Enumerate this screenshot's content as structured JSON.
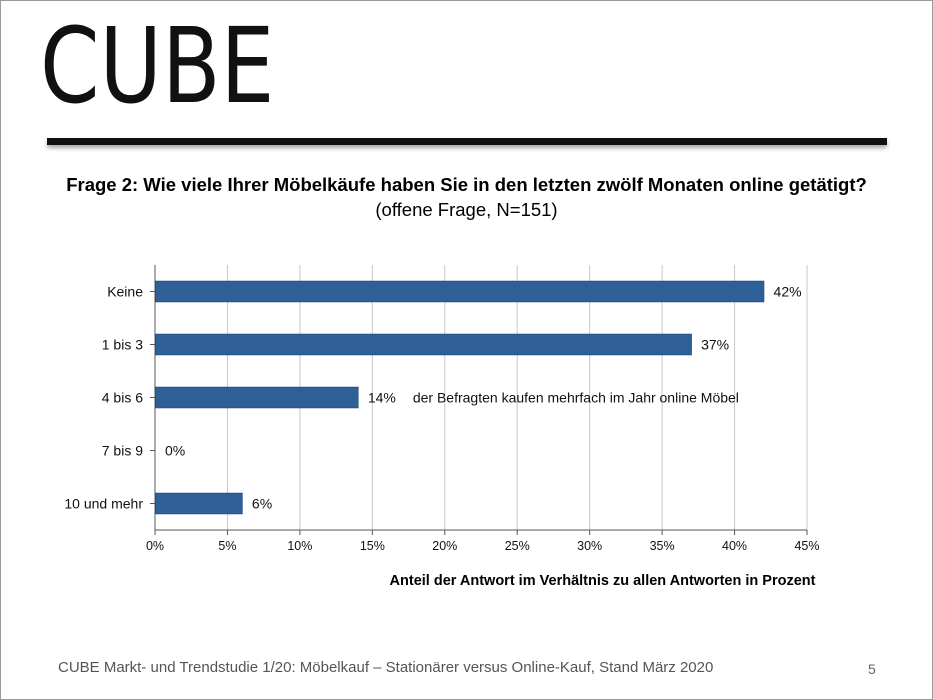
{
  "logo": "CUBE",
  "question": {
    "bold": "Frage 2: Wie viele Ihrer Möbelkäufe haben Sie in den letzten zwölf Monaten online getätigt?",
    "normal": " (offene Frage, N=151)"
  },
  "chart_data": {
    "type": "bar",
    "orientation": "horizontal",
    "categories": [
      "Keine",
      "1 bis 3",
      "4 bis 6",
      "7 bis 9",
      "10 und mehr"
    ],
    "values": [
      42,
      37,
      14,
      0,
      6
    ],
    "value_labels": [
      "42%",
      "37%",
      "14%",
      "0%",
      "6%"
    ],
    "annotation": {
      "category": "4 bis 6",
      "text": "der Befragten kaufen mehrfach im Jahr online Möbel"
    },
    "xticks": [
      "0%",
      "5%",
      "10%",
      "15%",
      "20%",
      "25%",
      "30%",
      "35%",
      "40%",
      "45%"
    ],
    "xlim": [
      0,
      45
    ],
    "xlabel": "Anteil der Antwort im Verhältnis zu allen Antworten in Prozent",
    "bar_color": "#2e5f96",
    "grid": true
  },
  "footer": "CUBE Markt- und Trendstudie 1/20: Möbelkauf – Stationärer versus Online-Kauf, Stand März 2020",
  "page_number": "5"
}
